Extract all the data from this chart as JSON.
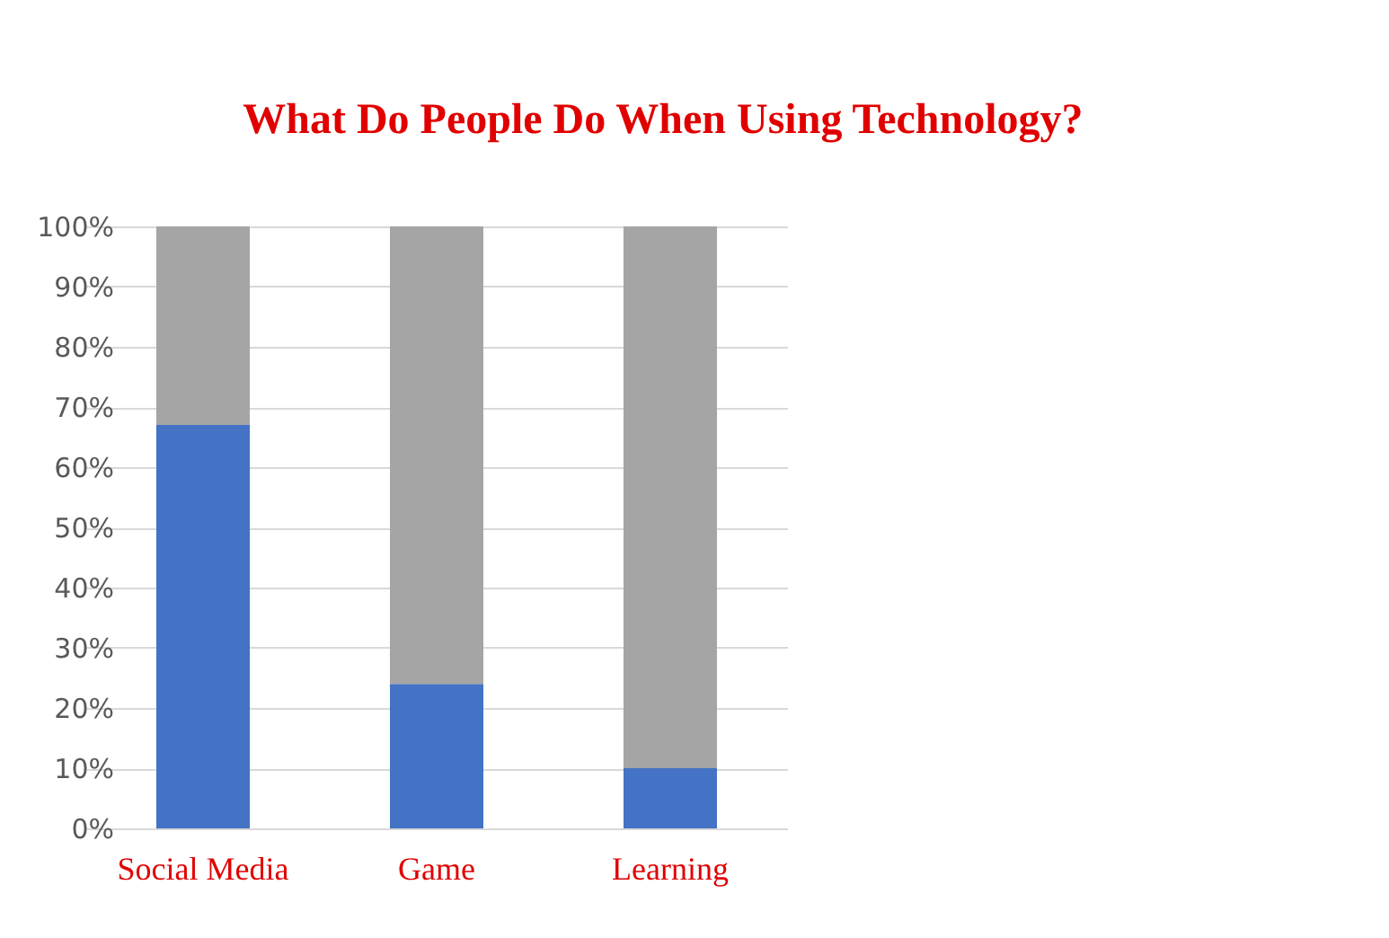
{
  "chart_data": {
    "type": "bar",
    "title": "What Do People Do When Using Technology?",
    "categories": [
      "Social Media",
      "Game",
      "Learning"
    ],
    "stacked": true,
    "series": [
      {
        "color": "#4472c4",
        "values": [
          67,
          24,
          10
        ]
      },
      {
        "color": "#a5a5a5",
        "values": [
          33,
          76,
          90
        ]
      }
    ],
    "ylim": [
      0,
      100
    ],
    "yticks": [
      {
        "value": 0,
        "label": "0%"
      },
      {
        "value": 10,
        "label": "10%"
      },
      {
        "value": 20,
        "label": "20%"
      },
      {
        "value": 30,
        "label": "30%"
      },
      {
        "value": 40,
        "label": "40%"
      },
      {
        "value": 50,
        "label": "50%"
      },
      {
        "value": 60,
        "label": "60%"
      },
      {
        "value": 70,
        "label": "70%"
      },
      {
        "value": 80,
        "label": "80%"
      },
      {
        "value": 90,
        "label": "90%"
      },
      {
        "value": 100,
        "label": "100%"
      }
    ],
    "grid": "y",
    "legend": false
  }
}
